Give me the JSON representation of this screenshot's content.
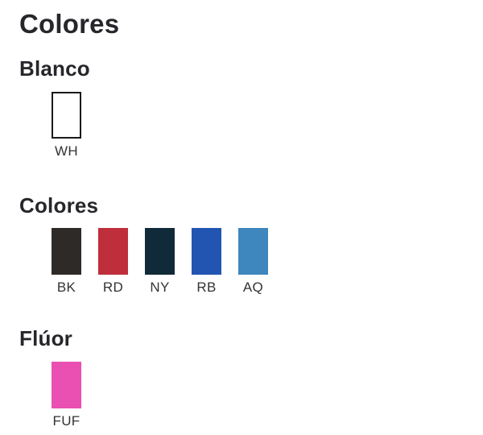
{
  "page": {
    "title": "Colores"
  },
  "theme": {
    "heading_color": "#26262b",
    "label_color": "#333333",
    "white_swatch_border": "#1a1a1a",
    "background": "#ffffff"
  },
  "sections": [
    {
      "heading": "Blanco",
      "swatches": [
        {
          "code": "WH",
          "color": "#ffffff"
        }
      ]
    },
    {
      "heading": "Colores",
      "swatches": [
        {
          "code": "BK",
          "color": "#2e2a27"
        },
        {
          "code": "RD",
          "color": "#bf2e3b"
        },
        {
          "code": "NY",
          "color": "#112a3a"
        },
        {
          "code": "RB",
          "color": "#2255b1"
        },
        {
          "code": "AQ",
          "color": "#3e86be"
        }
      ]
    },
    {
      "heading": "Flúor",
      "swatches": [
        {
          "code": "FUF",
          "color": "#ea50b2"
        }
      ]
    }
  ]
}
